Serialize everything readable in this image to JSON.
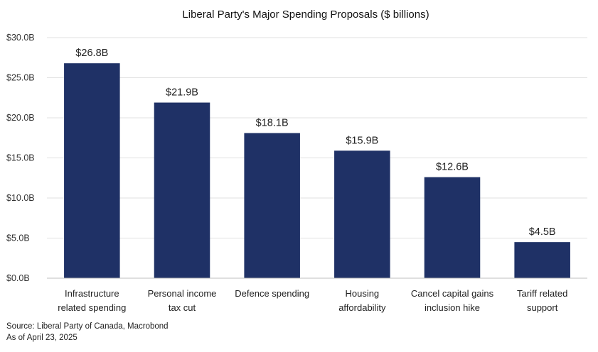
{
  "chart_data": {
    "type": "bar",
    "title": "Liberal Party's Major Spending Proposals ($ billions)",
    "xlabel": "",
    "ylabel": "",
    "ylim": [
      0,
      30
    ],
    "yticks": [
      0,
      5,
      10,
      15,
      20,
      25,
      30
    ],
    "ytick_labels": [
      "$0.0B",
      "$5.0B",
      "$10.0B",
      "$15.0B",
      "$20.0B",
      "$25.0B",
      "$30.0B"
    ],
    "categories": [
      [
        "Infrastructure",
        "related spending"
      ],
      [
        "Personal income",
        "tax cut"
      ],
      [
        "Defence spending"
      ],
      [
        "Housing",
        "affordability"
      ],
      [
        "Cancel capital gains",
        "inclusion hike"
      ],
      [
        "Tariff related",
        "support"
      ]
    ],
    "values": [
      26.8,
      21.9,
      18.1,
      15.9,
      12.6,
      4.5
    ],
    "data_labels": [
      "$26.8B",
      "$21.9B",
      "$18.1B",
      "$15.9B",
      "$12.6B",
      "$4.5B"
    ],
    "bar_color": "#1f3166",
    "grid": true,
    "legend": "none"
  },
  "footer": {
    "source": "Source: Liberal Party of Canada, Macrobond",
    "date": "As of April 23, 2025"
  }
}
